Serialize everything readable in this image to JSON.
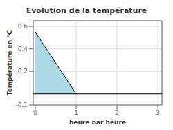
{
  "chart_data": {
    "type": "area",
    "title": "Evolution de la température",
    "x_label": "heure par heure",
    "y_label": "Température en °C",
    "x": [
      0,
      1
    ],
    "series": [
      {
        "type": "area",
        "color": "#add8e6",
        "values": [
          0.55,
          0.0
        ]
      },
      {
        "type": "line",
        "color": "#000000",
        "values": [
          0.55,
          0.0
        ]
      }
    ],
    "xlim": [
      -0.05,
      3.1
    ],
    "ylim": [
      -0.1,
      0.65
    ],
    "xticks": [
      0,
      1,
      2,
      3
    ],
    "yticks": [
      -0.1,
      0.2,
      0.4,
      0.6
    ],
    "grid": true
  }
}
